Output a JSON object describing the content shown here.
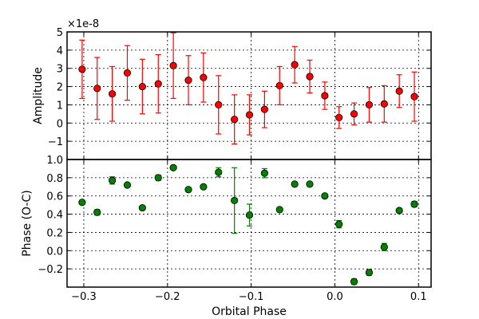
{
  "chart_data": [
    {
      "type": "scatter",
      "panel": "top",
      "ylabel": "Amplitude",
      "offset_text": "×1e-8",
      "ylim": [
        -2,
        5
      ],
      "y_ticks": [
        -1,
        0,
        1,
        2,
        3,
        4,
        5
      ],
      "y_tick_labels": [
        "−1",
        "0",
        "1",
        "2",
        "3",
        "4",
        "5"
      ],
      "xlim": [
        -0.32,
        0.115
      ],
      "grid": true,
      "marker_color": "#ff0000",
      "errorbar_color": "#ff0000",
      "series": [
        {
          "x": [
            -0.302,
            -0.284,
            -0.266,
            -0.248,
            -0.23,
            -0.211,
            -0.193,
            -0.175,
            -0.157,
            -0.139,
            -0.12,
            -0.102,
            -0.084,
            -0.066,
            -0.048,
            -0.03,
            -0.012,
            0.005,
            0.023,
            0.041,
            0.059,
            0.077,
            0.095
          ],
          "y": [
            2.95,
            1.9,
            1.6,
            2.75,
            2.0,
            2.15,
            3.15,
            2.35,
            2.5,
            1.0,
            0.2,
            0.45,
            0.75,
            2.05,
            3.2,
            2.55,
            1.5,
            0.3,
            0.5,
            1.0,
            1.05,
            1.75,
            1.45
          ],
          "err": [
            1.6,
            1.7,
            1.5,
            1.5,
            1.5,
            1.6,
            1.8,
            1.35,
            1.35,
            1.6,
            1.35,
            1.1,
            1.0,
            1.05,
            1.0,
            0.9,
            0.75,
            0.6,
            0.6,
            0.95,
            1.0,
            0.9,
            1.35
          ]
        }
      ]
    },
    {
      "type": "scatter",
      "panel": "bottom",
      "ylabel": "Phase (O-C)",
      "xlabel": "Orbital Phase",
      "ylim": [
        -0.4,
        1.0
      ],
      "y_ticks": [
        -0.2,
        0.0,
        0.2,
        0.4,
        0.6,
        0.8,
        1.0
      ],
      "y_tick_labels": [
        "−0.2",
        "0.0",
        "0.2",
        "0.4",
        "0.6",
        "0.8",
        "1.0"
      ],
      "xlim": [
        -0.32,
        0.115
      ],
      "x_ticks": [
        -0.3,
        -0.2,
        -0.1,
        0.0,
        0.1
      ],
      "x_tick_labels": [
        "−0.3",
        "−0.2",
        "−0.1",
        "0.0",
        "0.1"
      ],
      "grid": true,
      "marker_color": "#008000",
      "errorbar_color": "#008000",
      "series": [
        {
          "x": [
            -0.302,
            -0.284,
            -0.266,
            -0.248,
            -0.23,
            -0.211,
            -0.193,
            -0.175,
            -0.157,
            -0.139,
            -0.12,
            -0.102,
            -0.084,
            -0.066,
            -0.048,
            -0.03,
            -0.012,
            0.005,
            0.023,
            0.041,
            0.059,
            0.077,
            0.095
          ],
          "y": [
            0.53,
            0.42,
            0.77,
            0.72,
            0.47,
            0.8,
            0.91,
            0.67,
            0.7,
            0.86,
            0.55,
            0.39,
            0.85,
            0.45,
            0.73,
            0.73,
            0.6,
            0.29,
            -0.34,
            -0.24,
            0.04,
            0.44,
            0.51
          ],
          "err": [
            0.02,
            0.03,
            0.04,
            0.02,
            0.02,
            0.03,
            0.02,
            0.02,
            0.02,
            0.05,
            0.36,
            0.12,
            0.05,
            0.02,
            0.02,
            0.02,
            0.02,
            0.04,
            0.03,
            0.03,
            0.04,
            0.02,
            0.03
          ]
        }
      ]
    }
  ]
}
